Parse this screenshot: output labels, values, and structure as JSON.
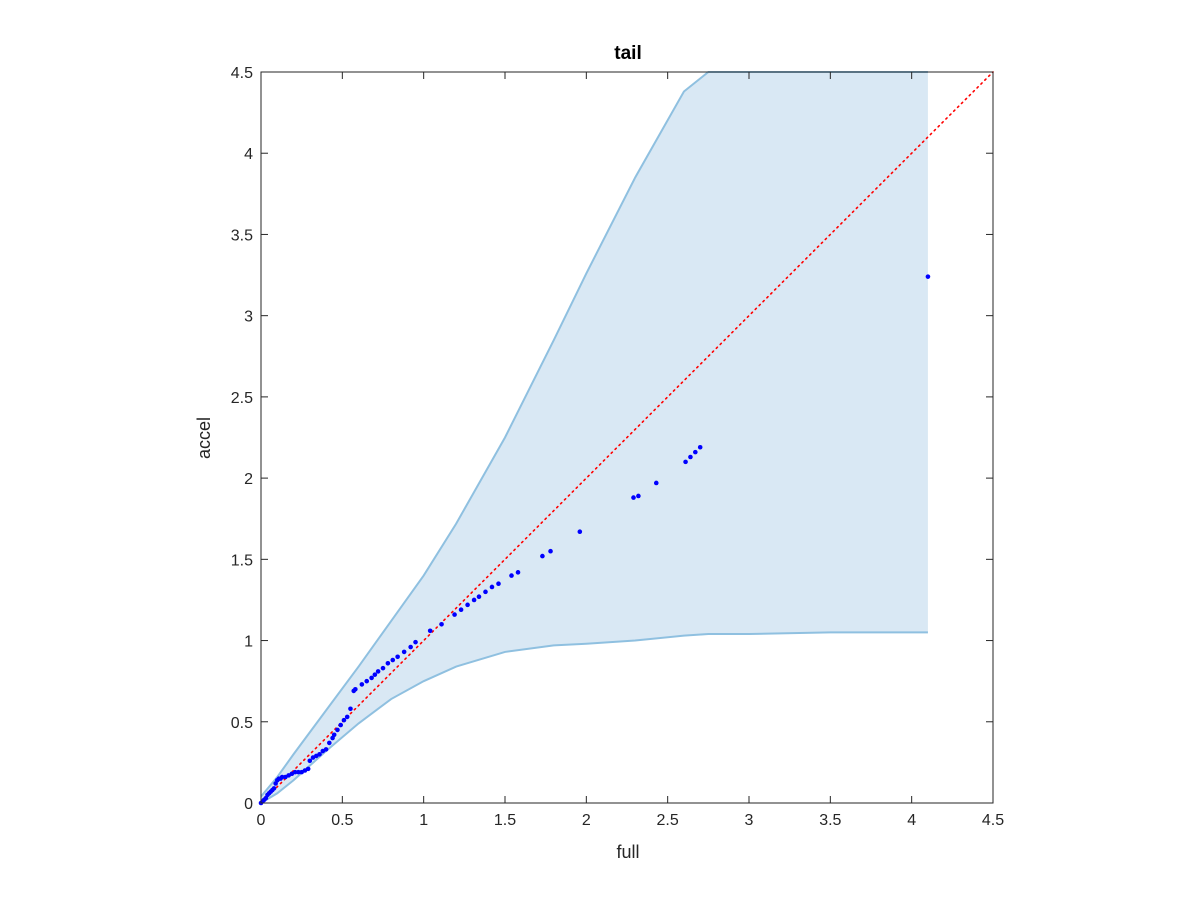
{
  "chart_data": {
    "type": "scatter",
    "title": "tail",
    "xlabel": "full",
    "ylabel": "accel",
    "xlim": [
      0,
      4.5
    ],
    "ylim": [
      0,
      4.5
    ],
    "xticks": [
      0,
      0.5,
      1,
      1.5,
      2,
      2.5,
      3,
      3.5,
      4,
      4.5
    ],
    "yticks": [
      0,
      0.5,
      1,
      1.5,
      2,
      2.5,
      3,
      3.5,
      4,
      4.5
    ],
    "tick_labels": [
      "0",
      "0.5",
      "1",
      "1.5",
      "2",
      "2.5",
      "3",
      "3.5",
      "4",
      "4.5"
    ],
    "grid": false,
    "colors": {
      "points": "#0000ff",
      "band_fill": "#d9e8f4",
      "band_edge": "#8fc0e0",
      "reference_line": "#ff0000",
      "axes": "#262626"
    },
    "points": {
      "x": [
        0.0,
        0.01,
        0.02,
        0.03,
        0.04,
        0.05,
        0.06,
        0.07,
        0.08,
        0.09,
        0.1,
        0.11,
        0.12,
        0.13,
        0.15,
        0.17,
        0.19,
        0.21,
        0.23,
        0.25,
        0.27,
        0.29,
        0.3,
        0.32,
        0.34,
        0.36,
        0.38,
        0.4,
        0.42,
        0.44,
        0.45,
        0.47,
        0.49,
        0.51,
        0.53,
        0.55,
        0.57,
        0.58,
        0.62,
        0.65,
        0.68,
        0.7,
        0.72,
        0.75,
        0.78,
        0.81,
        0.84,
        0.88,
        0.92,
        0.95,
        1.04,
        1.11,
        1.19,
        1.23,
        1.27,
        1.31,
        1.34,
        1.38,
        1.42,
        1.46,
        1.54,
        1.58,
        1.73,
        1.78,
        1.96,
        2.29,
        2.32,
        2.43,
        2.61,
        2.64,
        2.67,
        2.7,
        4.1
      ],
      "y": [
        0.0,
        0.01,
        0.02,
        0.03,
        0.05,
        0.06,
        0.07,
        0.08,
        0.09,
        0.12,
        0.14,
        0.15,
        0.15,
        0.16,
        0.16,
        0.17,
        0.18,
        0.19,
        0.19,
        0.19,
        0.2,
        0.21,
        0.26,
        0.28,
        0.29,
        0.3,
        0.32,
        0.33,
        0.37,
        0.4,
        0.42,
        0.45,
        0.48,
        0.51,
        0.53,
        0.58,
        0.69,
        0.7,
        0.73,
        0.75,
        0.77,
        0.79,
        0.81,
        0.83,
        0.86,
        0.88,
        0.9,
        0.93,
        0.96,
        0.99,
        1.06,
        1.1,
        1.16,
        1.19,
        1.22,
        1.25,
        1.27,
        1.3,
        1.33,
        1.35,
        1.4,
        1.42,
        1.52,
        1.55,
        1.67,
        1.88,
        1.89,
        1.97,
        2.1,
        2.13,
        2.16,
        2.19,
        3.24
      ]
    },
    "confidence_band": {
      "x": [
        0.0,
        0.1,
        0.2,
        0.4,
        0.6,
        0.8,
        1.0,
        1.2,
        1.5,
        1.8,
        2.0,
        2.3,
        2.6,
        2.75,
        3.0,
        3.5,
        4.1
      ],
      "upper": [
        0.04,
        0.16,
        0.3,
        0.57,
        0.84,
        1.12,
        1.4,
        1.72,
        2.25,
        2.85,
        3.26,
        3.85,
        4.38,
        4.5,
        4.5,
        4.5,
        4.5
      ],
      "lower": [
        0.0,
        0.06,
        0.14,
        0.32,
        0.49,
        0.64,
        0.75,
        0.84,
        0.93,
        0.97,
        0.98,
        1.0,
        1.03,
        1.04,
        1.04,
        1.05,
        1.05
      ]
    },
    "reference_line": {
      "x": [
        0,
        4.5
      ],
      "y": [
        0,
        4.5
      ],
      "style": "dotted"
    }
  }
}
